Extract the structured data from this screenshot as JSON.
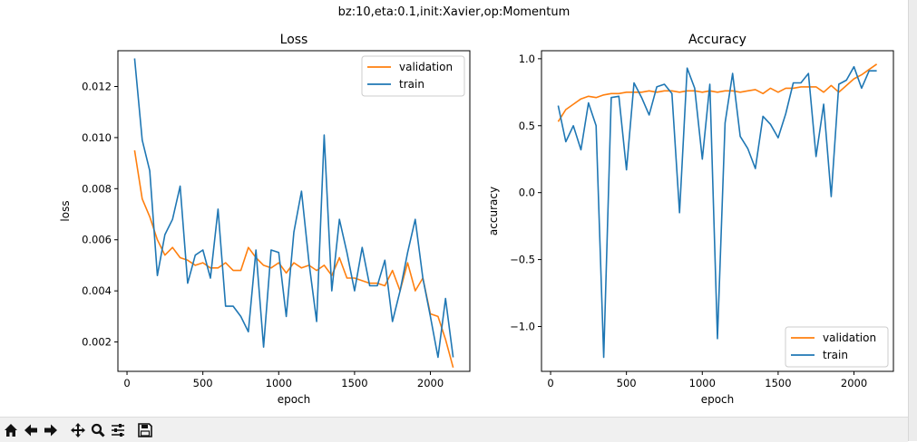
{
  "figure": {
    "suptitle": "bz:10,eta:0.1,init:Xavier,op:Momentum"
  },
  "colors": {
    "validation": "#ff7f0e",
    "train": "#1f77b4"
  },
  "toolbar": {
    "buttons": [
      "home-icon",
      "back-arrow-icon",
      "forward-arrow-icon",
      "pan-icon",
      "zoom-icon",
      "configure-subplots-icon",
      "save-icon"
    ]
  },
  "chart_data": [
    {
      "type": "line",
      "title": "Loss",
      "xlabel": "epoch",
      "ylabel": "loss",
      "xlim": [
        -60,
        2260
      ],
      "ylim": [
        0.00085,
        0.0134
      ],
      "xticks": [
        0,
        500,
        1000,
        1500,
        2000
      ],
      "yticks": [
        0.002,
        0.004,
        0.006,
        0.008,
        0.01,
        0.012
      ],
      "xtick_labels": [
        "0",
        "500",
        "1000",
        "1500",
        "2000"
      ],
      "ytick_labels": [
        "0.002",
        "0.004",
        "0.006",
        "0.008",
        "0.010",
        "0.012"
      ],
      "legend_position": "top-right",
      "x": [
        50,
        100,
        150,
        200,
        250,
        300,
        350,
        400,
        450,
        500,
        550,
        600,
        650,
        700,
        750,
        800,
        850,
        900,
        950,
        1000,
        1050,
        1100,
        1150,
        1200,
        1250,
        1300,
        1350,
        1400,
        1450,
        1500,
        1550,
        1600,
        1650,
        1700,
        1750,
        1800,
        1850,
        1900,
        1950,
        2000,
        2050,
        2100,
        2150
      ],
      "series": [
        {
          "name": "validation",
          "color": "#ff7f0e",
          "values": [
            0.0095,
            0.0076,
            0.0069,
            0.006,
            0.0054,
            0.0057,
            0.0053,
            0.0052,
            0.005,
            0.0051,
            0.0049,
            0.0049,
            0.0051,
            0.0048,
            0.0048,
            0.0057,
            0.0053,
            0.005,
            0.0049,
            0.0051,
            0.0047,
            0.0051,
            0.0049,
            0.005,
            0.0048,
            0.005,
            0.0046,
            0.0053,
            0.0045,
            0.0045,
            0.0044,
            0.0043,
            0.0043,
            0.0042,
            0.0048,
            0.004,
            0.0051,
            0.004,
            0.0045,
            0.0031,
            0.003,
            0.0021,
            0.001
          ]
        },
        {
          "name": "train",
          "color": "#1f77b4",
          "values": [
            0.0131,
            0.0099,
            0.0087,
            0.0046,
            0.0062,
            0.0068,
            0.0081,
            0.0043,
            0.0054,
            0.0056,
            0.0045,
            0.0072,
            0.0034,
            0.0034,
            0.003,
            0.0024,
            0.0056,
            0.0018,
            0.0056,
            0.0055,
            0.003,
            0.0063,
            0.0079,
            0.0051,
            0.0028,
            0.0101,
            0.004,
            0.0068,
            0.0055,
            0.004,
            0.0057,
            0.0042,
            0.0042,
            0.0052,
            0.0028,
            0.004,
            0.0055,
            0.0068,
            0.0045,
            0.003,
            0.0014,
            0.0037,
            0.0014
          ]
        }
      ]
    },
    {
      "type": "line",
      "title": "Accuracy",
      "xlabel": "epoch",
      "ylabel": "accuracy",
      "xlim": [
        -60,
        2260
      ],
      "ylim": [
        -1.335,
        1.06
      ],
      "xticks": [
        0,
        500,
        1000,
        1500,
        2000
      ],
      "yticks": [
        -1.0,
        -0.5,
        0.0,
        0.5,
        1.0
      ],
      "xtick_labels": [
        "0",
        "500",
        "1000",
        "1500",
        "2000"
      ],
      "ytick_labels": [
        "−1.0",
        "−0.5",
        "0.0",
        "0.5",
        "1.0"
      ],
      "legend_position": "bottom-right",
      "x": [
        50,
        100,
        150,
        200,
        250,
        300,
        350,
        400,
        450,
        500,
        550,
        600,
        650,
        700,
        750,
        800,
        850,
        900,
        950,
        1000,
        1050,
        1100,
        1150,
        1200,
        1250,
        1300,
        1350,
        1400,
        1450,
        1500,
        1550,
        1600,
        1650,
        1700,
        1750,
        1800,
        1850,
        1900,
        1950,
        2000,
        2050,
        2100,
        2150
      ],
      "series": [
        {
          "name": "validation",
          "color": "#ff7f0e",
          "values": [
            0.53,
            0.62,
            0.66,
            0.7,
            0.72,
            0.71,
            0.73,
            0.74,
            0.74,
            0.75,
            0.75,
            0.75,
            0.76,
            0.75,
            0.76,
            0.76,
            0.75,
            0.76,
            0.76,
            0.75,
            0.76,
            0.75,
            0.76,
            0.76,
            0.75,
            0.76,
            0.77,
            0.74,
            0.78,
            0.75,
            0.78,
            0.78,
            0.79,
            0.79,
            0.79,
            0.75,
            0.8,
            0.75,
            0.8,
            0.85,
            0.88,
            0.92,
            0.96
          ]
        },
        {
          "name": "train",
          "color": "#1f77b4",
          "values": [
            0.65,
            0.38,
            0.5,
            0.32,
            0.67,
            0.5,
            -1.23,
            0.71,
            0.72,
            0.17,
            0.82,
            0.71,
            0.58,
            0.79,
            0.81,
            0.74,
            -0.15,
            0.93,
            0.78,
            0.25,
            0.81,
            -1.09,
            0.52,
            0.89,
            0.42,
            0.33,
            0.18,
            0.57,
            0.51,
            0.41,
            0.59,
            0.82,
            0.82,
            0.89,
            0.27,
            0.66,
            -0.03,
            0.81,
            0.84,
            0.94,
            0.78,
            0.91,
            0.91
          ]
        }
      ]
    }
  ]
}
